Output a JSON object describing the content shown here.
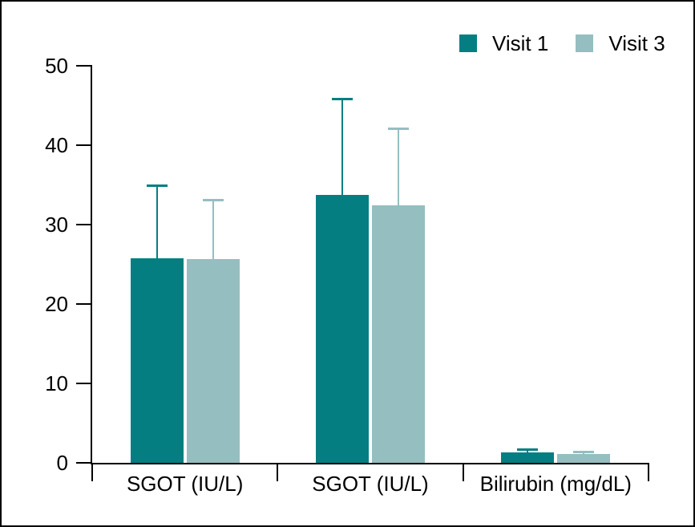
{
  "figure": {
    "background": "#ffffff",
    "border_color": "#000000",
    "text_color": "#000000"
  },
  "chart_data": {
    "type": "bar",
    "title": "",
    "xlabel": "",
    "ylabel": "",
    "categories": [
      "SGOT (IU/L)",
      "SGOT (IU/L)",
      "Bilirubin (mg/dL)"
    ],
    "series": [
      {
        "name": "Visit 1",
        "color": "#057e82",
        "values": [
          25.8,
          33.7,
          1.3
        ],
        "error_plus": [
          9.2,
          12.2,
          0.4
        ]
      },
      {
        "name": "Visit 3",
        "color": "#95bec1",
        "values": [
          25.7,
          32.4,
          1.15
        ],
        "error_plus": [
          7.4,
          9.7,
          0.25
        ]
      }
    ],
    "ylim": [
      0,
      50
    ],
    "yticks": [
      0,
      10,
      20,
      30,
      40,
      50
    ],
    "grid": false,
    "legend_position": "top-right",
    "error_bars": "upper-only"
  }
}
